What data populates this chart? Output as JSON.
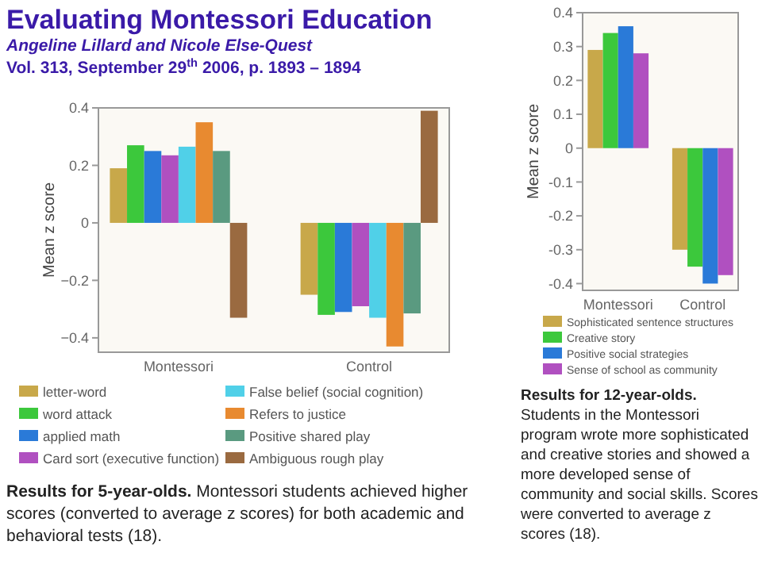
{
  "chart_data": [
    {
      "type": "bar",
      "title": "Evaluating Montessori Education",
      "subtitle": "Angeline Lillard and Nicole Else-Quest",
      "ylabel": "Mean z score",
      "annotations": [
        "Vol. 313, September 29$^{th}$ 2006, p. 1893 – 1894",
        "Results for 5-year-olds.",
        "Montessori students achieved higher scores (converted to average z scores) for both academic and behavioral tests (18)."
      ],
      "categories": [
        "Montessori",
        "Control"
      ],
      "series": [
        {
          "name": "letter-word",
          "color": "#c8a84a",
          "values": [
            0.19,
            -0.25
          ]
        },
        {
          "name": "word attack",
          "color": "#3cc83c",
          "values": [
            0.27,
            -0.32
          ]
        },
        {
          "name": "applied math",
          "color": "#2a7ad8",
          "values": [
            0.25,
            -0.31
          ]
        },
        {
          "name": "Card sort (executive function)",
          "color": "#b050c0",
          "values": [
            0.235,
            -0.29
          ]
        },
        {
          "name": "False belief (social cognition)",
          "color": "#50d0e8",
          "values": [
            0.265,
            -0.33
          ]
        },
        {
          "name": "Refers to justice",
          "color": "#e88a30",
          "values": [
            0.35,
            -0.43
          ]
        },
        {
          "name": "Positive shared play",
          "color": "#5a9a80",
          "values": [
            0.25,
            -0.315
          ]
        },
        {
          "name": "Ambiguous rough play",
          "color": "#9a6a40",
          "values": [
            -0.33,
            0.39
          ]
        }
      ],
      "ylim": [
        -0.45,
        0.4
      ],
      "yticks": [
        {
          "value": -0.4,
          "label": "−0.4"
        },
        {
          "value": -0.2,
          "label": "−0.2"
        },
        0,
        0.2,
        0.4
      ],
      "grid": false,
      "legend": "bottom"
    },
    {
      "type": "bar",
      "ylabel": "Mean z score",
      "annotations": [
        "Results for 12-year-olds.",
        "Students in the Montessori program wrote more sophisticated and creative stories and showed a more developed sense of community and social skills. Scores were converted to average z scores (18)."
      ],
      "categories": [
        "Montessori",
        "Control"
      ],
      "series": [
        {
          "name": "Sophisticated sentence structures",
          "color": "#c8a84a",
          "values": [
            0.29,
            -0.3
          ]
        },
        {
          "name": "Creative story",
          "color": "#3cc83c",
          "values": [
            0.34,
            -0.35
          ]
        },
        {
          "name": "Positive social strategies",
          "color": "#2a7ad8",
          "values": [
            0.36,
            -0.4
          ]
        },
        {
          "name": "Sense of school as community",
          "color": "#b050c0",
          "values": [
            0.28,
            -0.375
          ]
        }
      ],
      "ylim": [
        -0.42,
        0.4
      ],
      "yticks": [
        -0.4,
        -0.3,
        -0.2,
        -0.1,
        0,
        0.1,
        0.2,
        0.3,
        0.4
      ],
      "grid": false,
      "legend": "bottom"
    }
  ]
}
